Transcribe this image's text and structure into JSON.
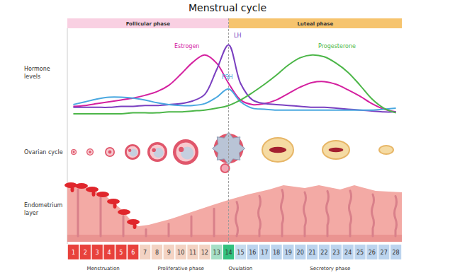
{
  "title": "Menstrual cycle",
  "phases": [
    {
      "label": "Follicular phase",
      "color": "#f9d0e2"
    },
    {
      "label": "Luteal phase",
      "color": "#f6c46e"
    }
  ],
  "rows": [
    "Hormone levels",
    "Ovarian cycle",
    "Endometrium layer"
  ],
  "ovulation_day": 14,
  "chart_data": {
    "type": "line",
    "x": [
      1,
      2,
      3,
      4,
      5,
      6,
      7,
      8,
      9,
      10,
      11,
      12,
      13,
      14,
      15,
      16,
      17,
      18,
      19,
      20,
      21,
      22,
      23,
      24,
      25,
      26,
      27,
      28
    ],
    "xlim": [
      0.5,
      28.5
    ],
    "ylim": [
      0,
      100
    ],
    "xticks": [],
    "yticks": [],
    "tick_labels": false,
    "grid": false,
    "series": [
      {
        "name": "Estrogen",
        "color": "#d4209f",
        "values": [
          15,
          16,
          18,
          20,
          22,
          24,
          27,
          31,
          38,
          50,
          63,
          71,
          62,
          40,
          22,
          17,
          18,
          22,
          29,
          36,
          41,
          42,
          39,
          33,
          26,
          18,
          12,
          9
        ]
      },
      {
        "name": "LH",
        "color": "#7a3fc0",
        "values": [
          14,
          14,
          14,
          14,
          15,
          15,
          16,
          16,
          17,
          18,
          21,
          28,
          55,
          82,
          40,
          22,
          18,
          17,
          16,
          15,
          14,
          14,
          13,
          12,
          11,
          10,
          9,
          9
        ]
      },
      {
        "name": "FSH",
        "color": "#4aa8e0",
        "values": [
          17,
          20,
          23,
          25,
          25,
          24,
          22,
          19,
          17,
          16,
          16,
          18,
          25,
          34,
          20,
          13,
          12,
          11,
          11,
          11,
          11,
          11,
          11,
          11,
          11,
          11,
          12,
          13
        ]
      },
      {
        "name": "Progesterone",
        "color": "#4cb648",
        "values": [
          7,
          7,
          7,
          7,
          7,
          8,
          8,
          8,
          9,
          9,
          10,
          11,
          13,
          16,
          22,
          30,
          39,
          49,
          60,
          68,
          71,
          69,
          62,
          52,
          38,
          23,
          13,
          8
        ]
      }
    ]
  },
  "stages": [
    {
      "label": "Menstruation",
      "days": [
        1,
        2,
        3,
        4,
        5,
        6
      ],
      "colors": [
        "#e8413c",
        "#e8413c",
        "#e8413c",
        "#e8413c",
        "#e8413c",
        "#e8413c"
      ],
      "text_color": "#ffffff"
    },
    {
      "label": "Proliferative phase",
      "days": [
        7,
        8,
        9,
        10,
        11,
        12,
        13
      ],
      "colors": [
        "#f3d3c3",
        "#f3d3c3",
        "#f3d3c3",
        "#f3d3c3",
        "#f3d3c3",
        "#f3d3c3",
        "#a6dfc6"
      ],
      "text_color": "#333333"
    },
    {
      "label": "Ovulation",
      "days": [
        14,
        15,
        16
      ],
      "colors": [
        "#33c17f",
        "#c6dcef",
        "#bcd4ee"
      ],
      "text_color": "#333333"
    },
    {
      "label": "Secretory phase",
      "days": [
        17,
        18,
        19,
        20,
        21,
        22,
        23,
        24,
        25,
        26,
        27,
        28
      ],
      "colors": [
        "#bcd4ee",
        "#bcd4ee",
        "#bcd4ee",
        "#bcd4ee",
        "#bcd4ee",
        "#bcd4ee",
        "#bcd4ee",
        "#bcd4ee",
        "#bcd4ee",
        "#bcd4ee",
        "#bcd4ee",
        "#bcd4ee"
      ],
      "text_color": "#333333"
    }
  ]
}
